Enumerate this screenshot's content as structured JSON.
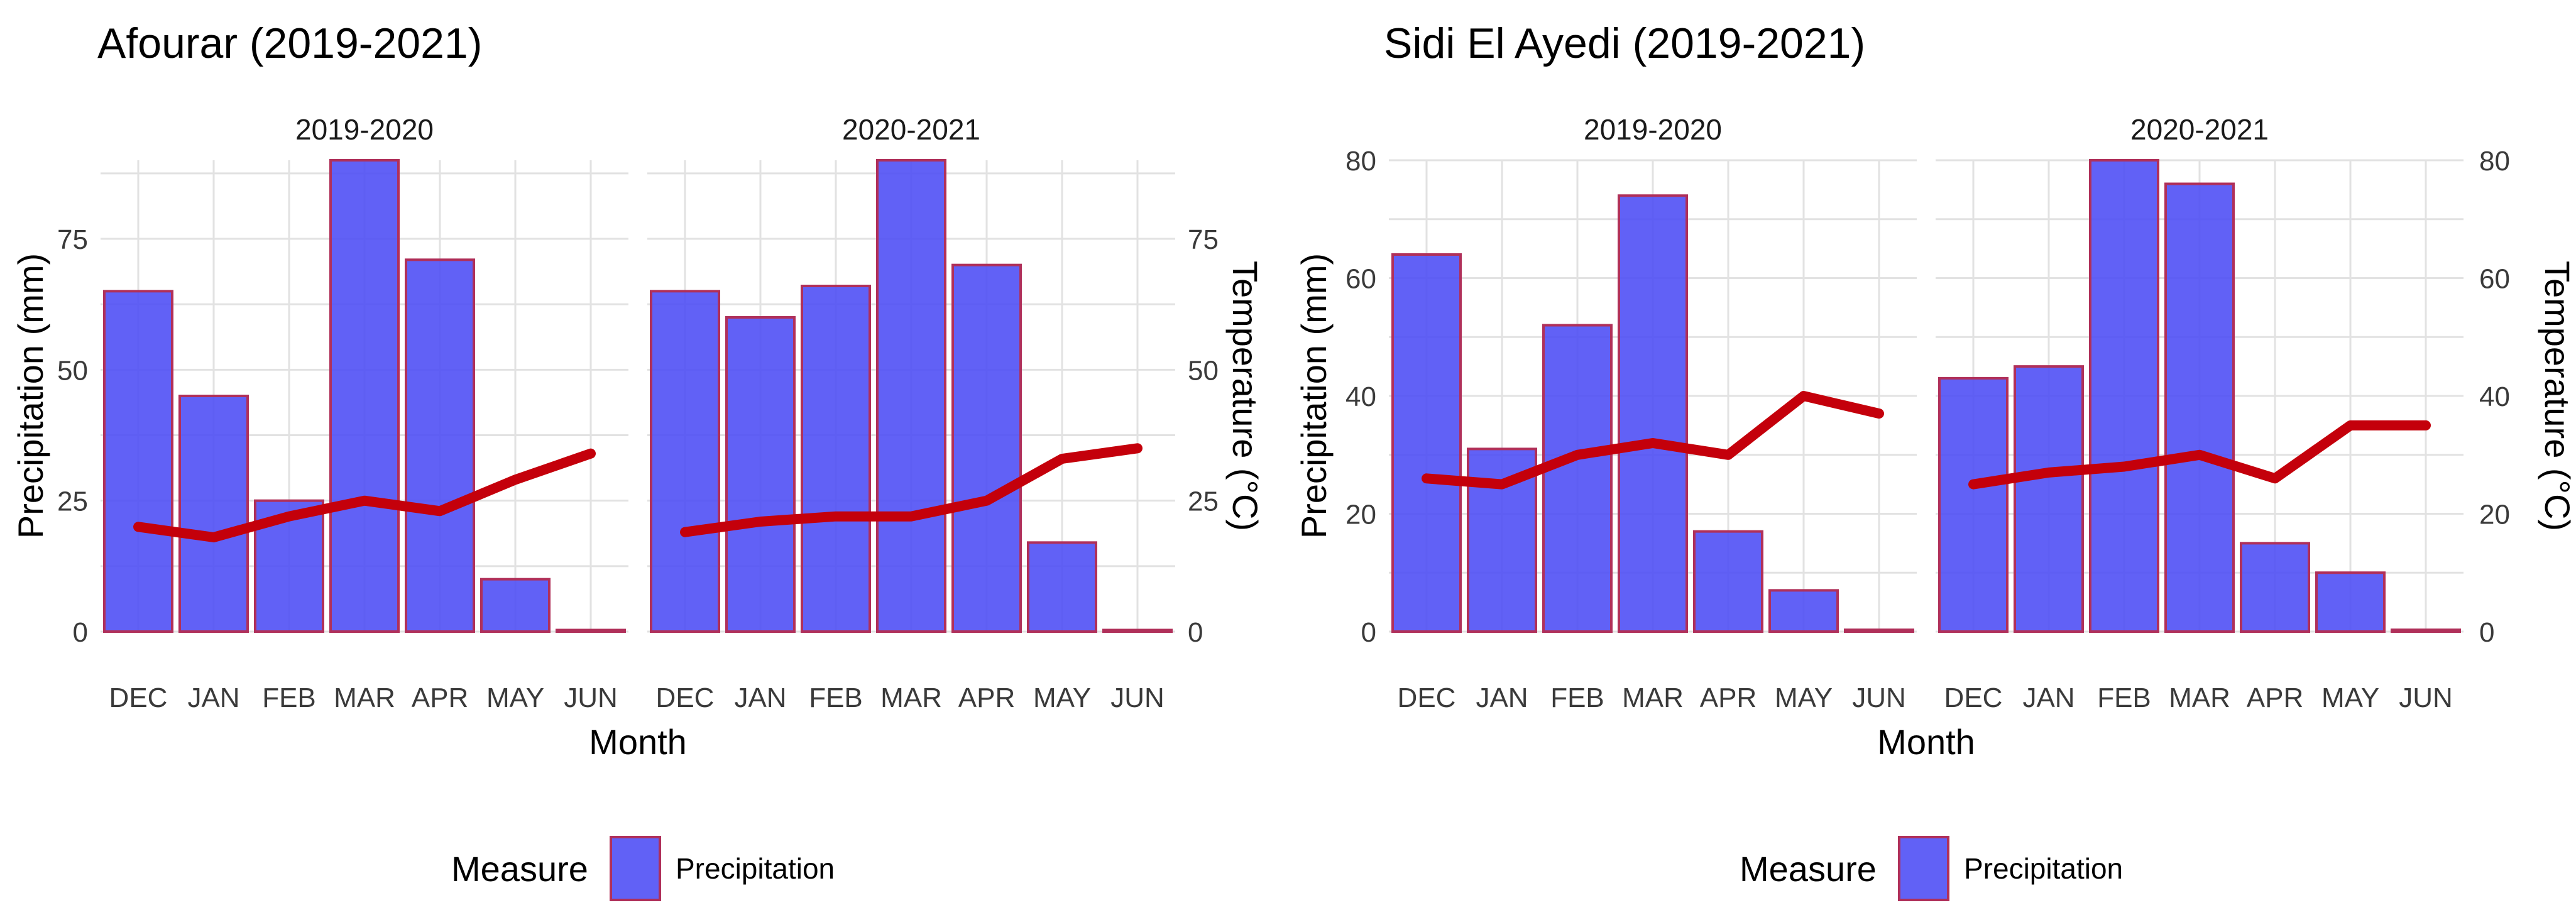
{
  "legend": {
    "title": "Measure",
    "label": "Precipitation"
  },
  "colors": {
    "bar_fill": "#5050f5",
    "bar_stroke": "#b0305a",
    "line": "#c4000b",
    "grid": "#e2e2e2"
  },
  "chart_data": [
    {
      "type": "bar",
      "title": "Afourar (2019-2021)",
      "xlabel": "Month",
      "ylabel": "Precipitation (mm)",
      "y2label": "Temperature (°C)",
      "ylim": [
        0,
        90
      ],
      "yticks": [
        0,
        25,
        50,
        75
      ],
      "categories": [
        "DEC",
        "JAN",
        "FEB",
        "MAR",
        "APR",
        "MAY",
        "JUN"
      ],
      "facets": [
        {
          "label": "2019-2020",
          "series": [
            {
              "name": "Precipitation",
              "values": [
                65,
                45,
                25,
                90,
                71,
                10,
                0.3
              ]
            },
            {
              "name": "Temperature",
              "type": "line",
              "values": [
                20,
                18,
                22,
                25,
                23,
                29,
                34
              ]
            }
          ]
        },
        {
          "label": "2020-2021",
          "series": [
            {
              "name": "Precipitation",
              "values": [
                65,
                60,
                66,
                90,
                70,
                17,
                0.3
              ]
            },
            {
              "name": "Temperature",
              "type": "line",
              "values": [
                19,
                21,
                22,
                22,
                25,
                33,
                35
              ]
            }
          ]
        }
      ]
    },
    {
      "type": "bar",
      "title": "Sidi El Ayedi (2019-2021)",
      "xlabel": "Month",
      "ylabel": "Precipitation (mm)",
      "y2label": "Temperature (°C)",
      "ylim": [
        0,
        80
      ],
      "yticks": [
        0,
        20,
        40,
        60,
        80
      ],
      "categories": [
        "DEC",
        "JAN",
        "FEB",
        "MAR",
        "APR",
        "MAY",
        "JUN"
      ],
      "facets": [
        {
          "label": "2019-2020",
          "series": [
            {
              "name": "Precipitation",
              "values": [
                64,
                31,
                52,
                74,
                17,
                7,
                0.3
              ]
            },
            {
              "name": "Temperature",
              "type": "line",
              "values": [
                26,
                25,
                30,
                32,
                30,
                40,
                37
              ]
            }
          ]
        },
        {
          "label": "2020-2021",
          "series": [
            {
              "name": "Precipitation",
              "values": [
                43,
                45,
                80,
                76,
                15,
                10,
                0.3
              ]
            },
            {
              "name": "Temperature",
              "type": "line",
              "values": [
                25,
                27,
                28,
                30,
                26,
                35,
                35
              ]
            }
          ]
        }
      ]
    }
  ]
}
